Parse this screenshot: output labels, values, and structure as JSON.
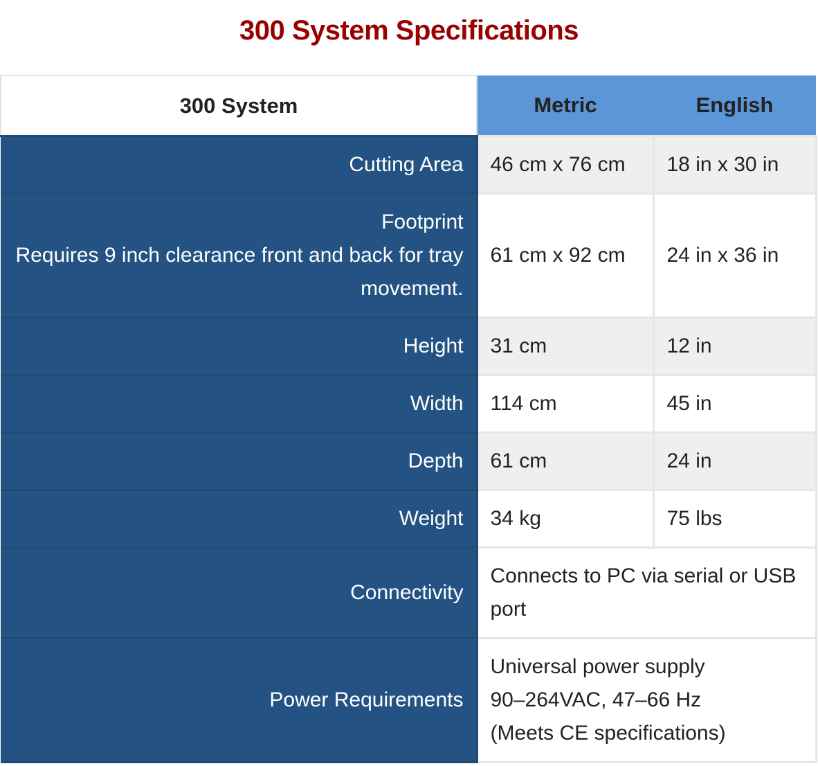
{
  "page": {
    "title": "300 System Specifications"
  },
  "table": {
    "headers": {
      "system": "300 System",
      "metric": "Metric",
      "english": "English"
    },
    "rows": [
      {
        "label": "Cutting Area",
        "metric": "46 cm x 76 cm",
        "english": "18 in x 30 in"
      },
      {
        "label": "Footprint",
        "label_note": "Requires 9 inch clearance front and back for tray movement.",
        "metric": "61 cm x 92 cm",
        "english": "24 in x 36 in"
      },
      {
        "label": "Height",
        "metric": "31 cm",
        "english": "12 in"
      },
      {
        "label": "Width",
        "metric": "114 cm",
        "english": "45 in"
      },
      {
        "label": "Depth",
        "metric": "61 cm",
        "english": "24 in"
      },
      {
        "label": "Weight",
        "metric": "34 kg",
        "english": "75 lbs"
      },
      {
        "label": "Connectivity",
        "value": "Connects to PC via serial or USB port"
      },
      {
        "label": "Power Requirements",
        "value_lines": [
          "Universal power supply",
          "90–264VAC, 47–66 Hz",
          "(Meets CE specifications)"
        ]
      }
    ]
  },
  "colors": {
    "title": "#990000",
    "label_background": "#245383",
    "header_background": "#5b96d8",
    "shaded_row": "#efefef"
  }
}
